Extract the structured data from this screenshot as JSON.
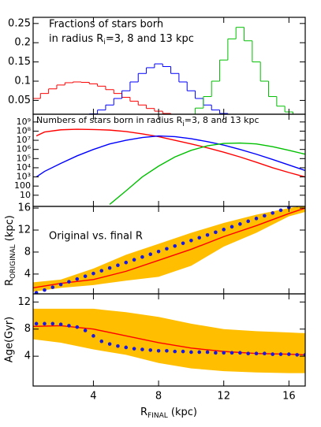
{
  "chart_data": [
    {
      "type": "step",
      "title": {
        "line1": "Fractions of stars born",
        "line2a": "in radius R",
        "line2sub": "i",
        "line2b": "=3, 8 and 13 kpc"
      },
      "xlim": [
        0.3,
        17
      ],
      "ylim": [
        0.014,
        0.266
      ],
      "yticks": [
        0.05,
        0.1,
        0.15,
        0.2,
        0.25
      ],
      "series": [
        {
          "color": "#ff0000",
          "x": [
            0.5,
            1,
            1.5,
            2,
            2.5,
            3,
            3.5,
            4,
            4.5,
            5,
            5.5,
            6,
            6.5,
            7,
            7.5,
            8,
            8.5,
            9
          ],
          "values": [
            0.055,
            0.068,
            0.08,
            0.09,
            0.096,
            0.098,
            0.097,
            0.093,
            0.087,
            0.078,
            0.068,
            0.058,
            0.048,
            0.038,
            0.029,
            0.022,
            0.016,
            0.012
          ]
        },
        {
          "color": "#0000ff",
          "x": [
            4,
            4.5,
            5,
            5.5,
            6,
            6.5,
            7,
            7.5,
            8,
            8.5,
            9,
            9.5,
            10,
            10.5,
            11,
            11.5,
            12,
            12.5
          ],
          "values": [
            0.015,
            0.025,
            0.038,
            0.055,
            0.075,
            0.098,
            0.12,
            0.135,
            0.145,
            0.138,
            0.12,
            0.098,
            0.075,
            0.055,
            0.038,
            0.025,
            0.016,
            0.01
          ]
        },
        {
          "color": "#00c000",
          "x": [
            10,
            10.5,
            11,
            11.5,
            12,
            12.5,
            13,
            13.5,
            14,
            14.5,
            15,
            15.5,
            16,
            16.5,
            17
          ],
          "values": [
            0.012,
            0.03,
            0.06,
            0.1,
            0.155,
            0.21,
            0.24,
            0.205,
            0.15,
            0.1,
            0.06,
            0.035,
            0.02,
            0.012,
            0.008
          ]
        }
      ]
    },
    {
      "type": "line",
      "log_scale": true,
      "title": {
        "line1a": "Numbers of stars born  in radius R",
        "line1sub": "i",
        "line1b": "=3, 8 and 13 kpc"
      },
      "xlim": [
        0.3,
        17
      ],
      "ylim": [
        0.6,
        7000000000
      ],
      "yticks": [
        10,
        100,
        {
          "value": 1000,
          "label": "10³"
        },
        {
          "value": 10000,
          "label": "10⁴"
        },
        {
          "value": 100000,
          "label": "10⁵"
        },
        {
          "value": 1000000,
          "label": "10⁶"
        },
        {
          "value": 10000000,
          "label": "10⁷"
        },
        {
          "value": 100000000,
          "label": "10⁸"
        },
        {
          "value": 1000000000,
          "label": "10⁹"
        }
      ],
      "series": [
        {
          "color": "#ff0000",
          "x": [
            0.5,
            1,
            2,
            3,
            4,
            5,
            6,
            7,
            8,
            9,
            10,
            11,
            12,
            13,
            14,
            15,
            16,
            17
          ],
          "values": [
            30000000,
            80000000,
            140000000,
            160000000,
            150000000,
            130000000,
            90000000,
            50000000,
            25000000,
            10000000,
            4000000,
            1500000,
            500000,
            150000,
            40000,
            10000,
            3000,
            1000
          ]
        },
        {
          "color": "#0000ff",
          "x": [
            0.5,
            1,
            2,
            3,
            4,
            5,
            6,
            7,
            8,
            9,
            10,
            11,
            12,
            13,
            14,
            15,
            16,
            17
          ],
          "values": [
            1000,
            4000,
            30000,
            200000,
            1000000,
            4000000,
            10000000,
            20000000,
            30000000,
            25000000,
            15000000,
            7000000,
            3000000,
            1000000,
            300000,
            80000,
            20000,
            5000
          ]
        },
        {
          "color": "#00c000",
          "x": [
            0.5,
            1,
            2,
            3,
            4,
            5,
            6,
            7,
            8,
            9,
            10,
            11,
            12,
            13,
            14,
            15,
            16,
            17
          ],
          "values": [
            null,
            null,
            null,
            null,
            null,
            1,
            30,
            1000,
            15000,
            150000,
            800000,
            2500000,
            4500000,
            5000000,
            4000000,
            2000000,
            800000,
            300000
          ]
        }
      ]
    },
    {
      "type": "line",
      "annotation": "Original vs. final R",
      "ylabel": {
        "main": "R",
        "sub": "ORIGINAL",
        "unit": " (kpc)"
      },
      "xlim": [
        0.3,
        17
      ],
      "ylim": [
        0.4,
        16.3
      ],
      "yticks": [
        4,
        8,
        12,
        16
      ],
      "band": {
        "color": "#ffbf00",
        "x": [
          0.3,
          2,
          4,
          6,
          8,
          10,
          12,
          14,
          16,
          17
        ],
        "upper": [
          2.5,
          3,
          5,
          7.5,
          9.5,
          11.5,
          13.3,
          14.8,
          16,
          16.5
        ],
        "lower": [
          0.8,
          1.5,
          2,
          2.8,
          3.5,
          5.5,
          9,
          11.5,
          14.5,
          15.3
        ]
      },
      "series": [
        {
          "color": "#ff0000",
          "x": [
            0.3,
            2,
            4,
            6,
            8,
            10,
            12,
            14,
            16,
            17
          ],
          "values": [
            1.5,
            2.3,
            3,
            4.5,
            6.5,
            8.5,
            10.8,
            12.8,
            15,
            16
          ]
        },
        {
          "color": "#1a1add",
          "marker": "dot",
          "x": [
            0.5,
            1,
            1.5,
            2,
            2.5,
            3,
            3.5,
            4,
            4.5,
            5,
            5.5,
            6,
            6.5,
            7,
            7.5,
            8,
            8.5,
            9,
            9.5,
            10,
            10.5,
            11,
            11.5,
            12,
            12.5,
            13,
            13.5,
            14,
            14.5,
            15,
            15.5,
            16,
            16.5,
            17
          ],
          "values": [
            0.6,
            1.1,
            1.6,
            2.1,
            2.6,
            3.1,
            3.6,
            4.1,
            4.6,
            5.1,
            5.6,
            6.1,
            6.6,
            7.1,
            7.6,
            8.1,
            8.6,
            9.1,
            9.6,
            10.1,
            10.6,
            11.1,
            11.6,
            12.1,
            12.6,
            13.1,
            13.6,
            14.1,
            14.6,
            15.1,
            15.6,
            16.1,
            16.5,
            16.8
          ]
        }
      ]
    },
    {
      "type": "line",
      "ylabel": {
        "main": "Age(Gyr)"
      },
      "xlabel": {
        "main": "R",
        "sub": "FINAL",
        "unit": " (kpc)"
      },
      "xlim": [
        0.3,
        17
      ],
      "xticks": [
        4,
        8,
        12,
        16
      ],
      "ylim": [
        -0.4,
        13.2
      ],
      "yticks": [
        4,
        8,
        12
      ],
      "band": {
        "color": "#ffbf00",
        "x": [
          0.3,
          2,
          4,
          6,
          8,
          10,
          12,
          14,
          16,
          17
        ],
        "upper": [
          11,
          11,
          11,
          10.5,
          9.8,
          8.8,
          8,
          7.7,
          7.5,
          7.4
        ],
        "lower": [
          6.5,
          6,
          5,
          4.2,
          3,
          2.2,
          1.8,
          1.6,
          1.5,
          1.5
        ]
      },
      "series": [
        {
          "color": "#ff0000",
          "x": [
            0.3,
            2,
            4,
            6,
            8,
            10,
            12,
            14,
            16,
            17
          ],
          "values": [
            8.4,
            8.5,
            8,
            7,
            6,
            5.2,
            4.7,
            4.4,
            4.3,
            4.2
          ]
        },
        {
          "color": "#1a1add",
          "marker": "dot",
          "x": [
            0.5,
            1,
            1.5,
            2,
            2.5,
            3,
            3.5,
            4,
            4.5,
            5,
            5.5,
            6,
            6.5,
            7,
            7.5,
            8,
            8.5,
            9,
            9.5,
            10,
            10.5,
            11,
            11.5,
            12,
            12.5,
            13,
            13.5,
            14,
            14.5,
            15,
            15.5,
            16,
            16.5,
            17
          ],
          "values": [
            8.8,
            8.8,
            8.8,
            8.7,
            8.5,
            8.3,
            7.8,
            7,
            6.2,
            5.8,
            5.5,
            5.3,
            5.1,
            5,
            4.9,
            4.8,
            4.8,
            4.7,
            4.7,
            4.6,
            4.6,
            4.6,
            4.5,
            4.5,
            4.5,
            4.5,
            4.4,
            4.4,
            4.4,
            4.3,
            4.3,
            4.3,
            4.2,
            4.2
          ]
        }
      ]
    }
  ]
}
